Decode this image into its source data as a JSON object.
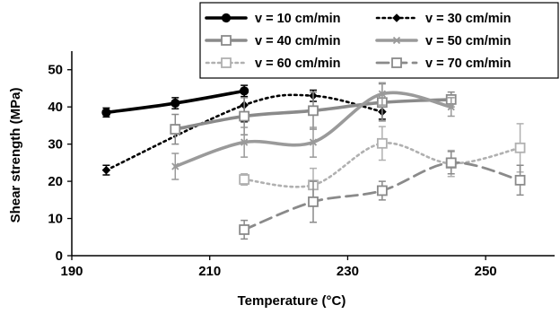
{
  "chart_data": {
    "type": "line",
    "xlabel": "Temperature (°C)",
    "ylabel": "Shear strength (MPa)",
    "xlim": [
      190,
      260
    ],
    "ylim": [
      0,
      55
    ],
    "xticks": [
      190,
      210,
      230,
      250
    ],
    "yticks": [
      0,
      10,
      20,
      30,
      40,
      50
    ],
    "grid": false,
    "legend_position": "top-right",
    "series": [
      {
        "name": "v = 10 cm/min",
        "color": "#000000",
        "style": "solid-thick",
        "marker": "filled-circle",
        "x": [
          195,
          205,
          215
        ],
        "y": [
          38.5,
          41,
          44.3
        ],
        "err": [
          1.2,
          1.5,
          1.5
        ]
      },
      {
        "name": "v = 30 cm/min",
        "color": "#000000",
        "style": "dotted",
        "marker": "filled-diamond",
        "x": [
          195,
          215,
          225,
          235
        ],
        "y": [
          23,
          40.5,
          43,
          38.7
        ],
        "err": [
          1.3,
          4.5,
          1.5,
          2
        ]
      },
      {
        "name": "v = 40 cm/min",
        "color": "#8a8a8a",
        "style": "solid-thick",
        "marker": "open-square",
        "x": [
          205,
          215,
          225,
          235,
          245
        ],
        "y": [
          34,
          37.5,
          39,
          41.2,
          42
        ],
        "err": [
          4,
          5,
          5,
          5,
          2
        ]
      },
      {
        "name": "v = 50 cm/min",
        "color": "#9a9a9a",
        "style": "solid-thick",
        "marker": "x",
        "x": [
          205,
          215,
          225,
          235,
          245
        ],
        "y": [
          24,
          30.5,
          30.5,
          43.5,
          40
        ],
        "err": [
          3.5,
          4,
          4,
          3,
          2.5
        ]
      },
      {
        "name": "v = 60 cm/min",
        "color": "#b0b0b0",
        "style": "dotted",
        "marker": "open-square",
        "x": [
          215,
          225,
          235,
          245,
          255
        ],
        "y": [
          20.5,
          19,
          30.2,
          24.8,
          29
        ],
        "err": [
          1.5,
          4.5,
          4.5,
          3.5,
          6.5
        ]
      },
      {
        "name": "v = 70 cm/min",
        "color": "#8a8a8a",
        "style": "dashed",
        "marker": "open-square",
        "x": [
          215,
          225,
          235,
          245,
          255
        ],
        "y": [
          7,
          14.5,
          17.5,
          25,
          20.3
        ],
        "err": [
          2.5,
          5.5,
          2.5,
          3,
          4
        ]
      }
    ]
  }
}
